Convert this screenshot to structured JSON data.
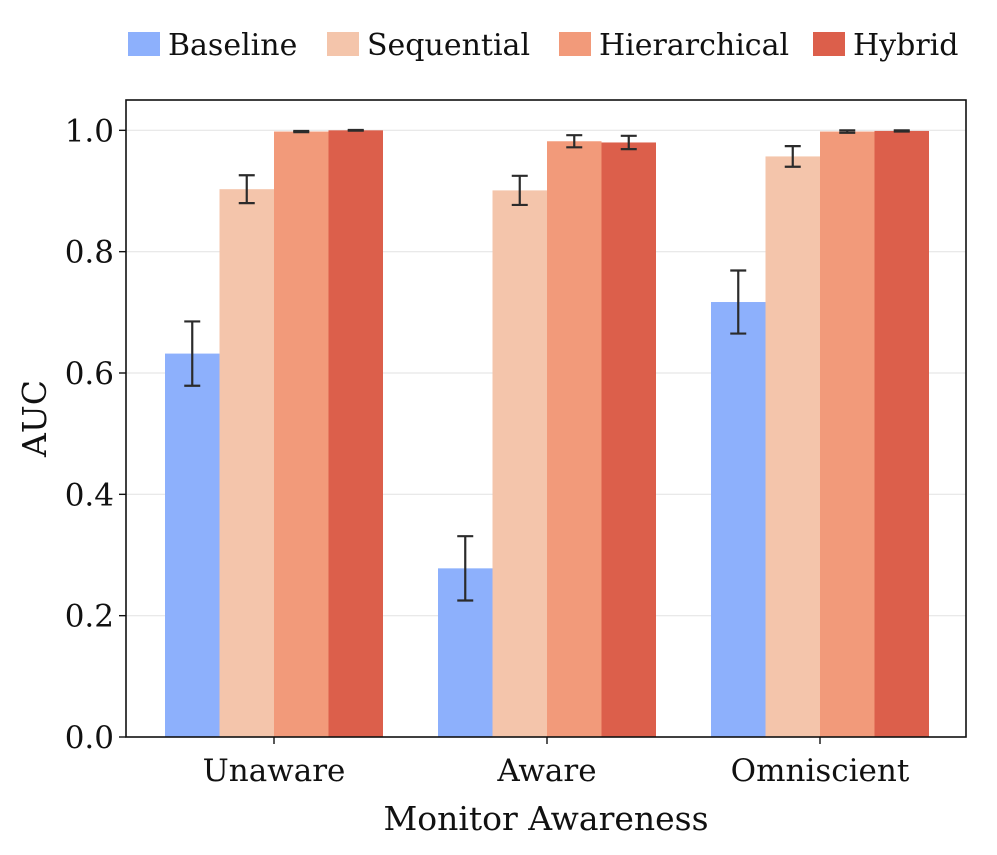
{
  "chart_data": {
    "type": "bar",
    "title": "",
    "xlabel": "Monitor Awareness",
    "ylabel": "AUC",
    "ylim": [
      0,
      1.05
    ],
    "yticks": [
      "0.0",
      "0.2",
      "0.4",
      "0.6",
      "0.8",
      "1.0"
    ],
    "grid": true,
    "legend_position": "top",
    "categories": [
      "Unaware",
      "Aware",
      "Omniscient"
    ],
    "series": [
      {
        "name": "Baseline",
        "color": "#8db0fc",
        "values": [
          0.632,
          0.278,
          0.717
        ],
        "errors": [
          0.053,
          0.053,
          0.052
        ]
      },
      {
        "name": "Sequential",
        "color": "#f4c5ab",
        "values": [
          0.903,
          0.901,
          0.957
        ],
        "errors": [
          0.023,
          0.024,
          0.017
        ]
      },
      {
        "name": "Hierarchical",
        "color": "#f29a7a",
        "values": [
          0.998,
          0.982,
          0.998
        ],
        "errors": [
          0.001,
          0.01,
          0.002
        ]
      },
      {
        "name": "Hybrid",
        "color": "#dc5f4b",
        "values": [
          1.0,
          0.98,
          0.999
        ],
        "errors": [
          0.0005,
          0.011,
          0.001
        ]
      }
    ]
  }
}
